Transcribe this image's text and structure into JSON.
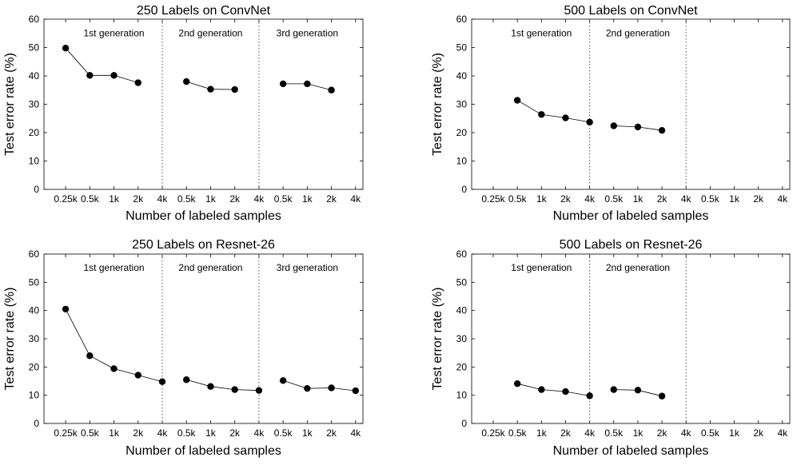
{
  "chart_data": [
    {
      "type": "line",
      "title": "250 Labels on ConvNet",
      "xlabel": "Number of labeled samples",
      "ylabel": "Test error rate (%)",
      "ylim": [
        0,
        60
      ],
      "yticks": [
        0,
        10,
        20,
        30,
        40,
        50,
        60
      ],
      "xticks": [
        "0.25k",
        "0.5k",
        "1k",
        "2k",
        "4k",
        "0.5k",
        "1k",
        "2k",
        "4k",
        "0.5k",
        "1k",
        "2k",
        "4k"
      ],
      "generation_labels": [
        "1st generation",
        "2nd generation",
        "3rd generation"
      ],
      "grid": false,
      "series": [
        {
          "x": [
            "0.25k",
            "0.5k",
            "1k",
            "2k"
          ],
          "values": [
            49.8,
            40.2,
            40.2,
            37.6
          ]
        },
        {
          "x": [
            "0.5k",
            "1k",
            "2k"
          ],
          "values": [
            38.0,
            35.3,
            35.2
          ]
        },
        {
          "x": [
            "0.5k",
            "1k",
            "2k"
          ],
          "values": [
            37.2,
            37.2,
            35.0
          ]
        }
      ]
    },
    {
      "type": "line",
      "title": "500 Labels on ConvNet",
      "xlabel": "Number of labeled samples",
      "ylabel": "Test error rate (%)",
      "ylim": [
        0,
        60
      ],
      "yticks": [
        0,
        10,
        20,
        30,
        40,
        50,
        60
      ],
      "xticks": [
        "0.25k",
        "0.5k",
        "1k",
        "2k",
        "4k",
        "0.5k",
        "1k",
        "2k",
        "4k",
        "0.5k",
        "1k",
        "2k",
        "4k"
      ],
      "generation_labels": [
        "1st generation",
        "2nd generation"
      ],
      "grid": false,
      "series": [
        {
          "x": [
            "0.5k",
            "1k",
            "2k",
            "4k"
          ],
          "values": [
            31.4,
            26.4,
            25.2,
            23.7
          ]
        },
        {
          "x": [
            "0.5k",
            "1k",
            "2k"
          ],
          "values": [
            22.4,
            22.0,
            20.8
          ]
        }
      ]
    },
    {
      "type": "line",
      "title": "250 Labels on Resnet-26",
      "xlabel": "Number of labeled samples",
      "ylabel": "Test error rate (%)",
      "ylim": [
        0,
        60
      ],
      "yticks": [
        0,
        10,
        20,
        30,
        40,
        50,
        60
      ],
      "xticks": [
        "0.25k",
        "0.5k",
        "1k",
        "2k",
        "4k",
        "0.5k",
        "1k",
        "2k",
        "4k",
        "0.5k",
        "1k",
        "2k",
        "4k"
      ],
      "generation_labels": [
        "1st generation",
        "2nd generation",
        "3rd generation"
      ],
      "grid": false,
      "series": [
        {
          "x": [
            "0.25k",
            "0.5k",
            "1k",
            "2k",
            "4k"
          ],
          "values": [
            40.5,
            24.0,
            19.4,
            17.1,
            14.8
          ]
        },
        {
          "x": [
            "0.5k",
            "1k",
            "2k",
            "4k"
          ],
          "values": [
            15.5,
            13.1,
            12.0,
            11.7
          ]
        },
        {
          "x": [
            "0.5k",
            "1k",
            "2k",
            "4k"
          ],
          "values": [
            15.2,
            12.4,
            12.6,
            11.6
          ]
        }
      ]
    },
    {
      "type": "line",
      "title": "500 Labels on Resnet-26",
      "xlabel": "Number of labeled samples",
      "ylabel": "Test error rate (%)",
      "ylim": [
        0,
        60
      ],
      "yticks": [
        0,
        10,
        20,
        30,
        40,
        50,
        60
      ],
      "xticks": [
        "0.25k",
        "0.5k",
        "1k",
        "2k",
        "4k",
        "0.5k",
        "1k",
        "2k",
        "4k",
        "0.5k",
        "1k",
        "2k",
        "4k"
      ],
      "generation_labels": [
        "1st generation",
        "2nd generation"
      ],
      "grid": false,
      "series": [
        {
          "x": [
            "0.5k",
            "1k",
            "2k",
            "4k"
          ],
          "values": [
            14.1,
            12.0,
            11.3,
            9.8
          ]
        },
        {
          "x": [
            "0.5k",
            "1k",
            "2k"
          ],
          "values": [
            12.0,
            11.8,
            9.7
          ]
        }
      ]
    }
  ]
}
